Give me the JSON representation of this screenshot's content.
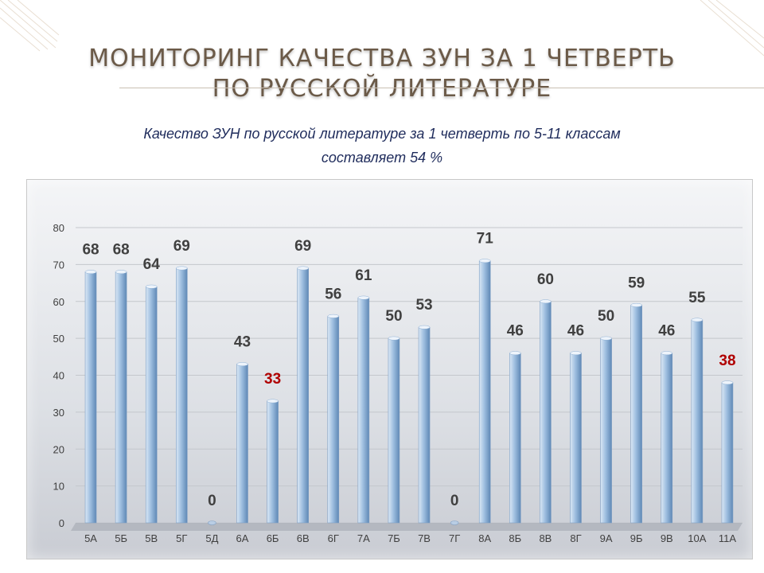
{
  "slide": {
    "title_line1": "МОНИТОРИНГ  КАЧЕСТВА ЗУН ЗА 1  ЧЕТВЕРТЬ",
    "title_line2": "ПО  РУССКОЙ  ЛИТЕРАТУРЕ",
    "subtitle_line1": "Качество ЗУН по русской литературе  за 1 четверть  по 5-11 классам",
    "subtitle_line2": "составляет  54 %"
  },
  "colors": {
    "bar_light": "#dbe8f5",
    "bar_mid": "#9fbfe0",
    "bar_dark": "#5f88b5",
    "label_normal": "#404040",
    "label_low": "#b00000",
    "title": "#6b5a48",
    "subtitle": "#1f2c5c"
  },
  "chart_data": {
    "type": "bar",
    "categories": [
      "5А",
      "5Б",
      "5В",
      "5Г",
      "5Д",
      "6А",
      "6Б",
      "6В",
      "6Г",
      "7А",
      "7Б",
      "7В",
      "7Г",
      "8А",
      "8Б",
      "8В",
      "8Г",
      "9А",
      "9Б",
      "9В",
      "10А",
      "11А"
    ],
    "values": [
      68,
      68,
      64,
      69,
      0,
      43,
      33,
      69,
      56,
      61,
      50,
      53,
      0,
      71,
      46,
      60,
      46,
      50,
      59,
      46,
      55,
      38
    ],
    "highlighted_low": [
      "6Б",
      "11А"
    ],
    "ylim": [
      0,
      80
    ],
    "yticks": [
      0,
      10,
      20,
      30,
      40,
      50,
      60,
      70,
      80
    ],
    "title": "",
    "xlabel": "",
    "ylabel": "",
    "grid": true,
    "legend": "none"
  }
}
